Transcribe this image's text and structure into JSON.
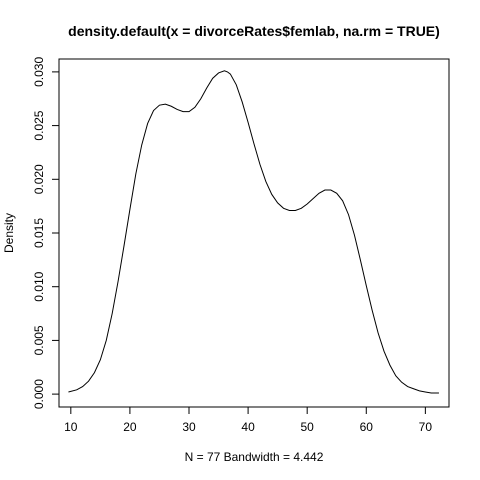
{
  "chart_data": {
    "type": "line",
    "title": "density.default(x = divorceRates$femlab, na.rm = TRUE)",
    "xlabel": "N = 77   Bandwidth = 4.442",
    "ylabel": "Density",
    "xlim": [
      8,
      74
    ],
    "ylim": [
      -0.0012,
      0.0312
    ],
    "x_ticks": [
      10,
      20,
      30,
      40,
      50,
      60,
      70
    ],
    "y_ticks": [
      0.0,
      0.005,
      0.01,
      0.015,
      0.02,
      0.025,
      0.03
    ],
    "y_tick_labels": [
      "0.000",
      "0.005",
      "0.010",
      "0.015",
      "0.020",
      "0.025",
      "0.030"
    ],
    "grid": false,
    "series": [
      {
        "x": [
          9.6,
          11,
          12,
          13,
          14,
          15,
          16,
          17,
          18,
          19,
          20,
          21,
          22,
          23,
          24,
          25,
          26,
          27,
          28,
          29,
          30,
          31,
          32,
          33,
          34,
          35,
          36,
          36.5,
          37,
          38,
          39,
          40,
          41,
          42,
          43,
          44,
          45,
          46,
          47,
          48,
          49,
          50,
          51,
          52,
          53,
          54,
          55,
          56,
          57,
          58,
          59,
          60,
          61,
          62,
          63,
          64,
          65,
          66,
          67,
          68,
          69,
          70,
          71,
          72.3
        ],
        "y": [
          0.0002,
          0.0004,
          0.0007,
          0.0012,
          0.002,
          0.0032,
          0.005,
          0.0075,
          0.0105,
          0.0138,
          0.0172,
          0.0205,
          0.0232,
          0.0252,
          0.0264,
          0.0269,
          0.027,
          0.0268,
          0.0265,
          0.0263,
          0.0263,
          0.0267,
          0.0275,
          0.0285,
          0.0294,
          0.0299,
          0.0301,
          0.03,
          0.0298,
          0.0288,
          0.0272,
          0.0253,
          0.0233,
          0.0214,
          0.0198,
          0.0186,
          0.0178,
          0.0173,
          0.0171,
          0.0171,
          0.0173,
          0.0177,
          0.0182,
          0.0187,
          0.019,
          0.019,
          0.0187,
          0.018,
          0.0167,
          0.0148,
          0.0125,
          0.0101,
          0.0078,
          0.0057,
          0.004,
          0.0027,
          0.0017,
          0.0011,
          0.0007,
          0.0005,
          0.0003,
          0.0002,
          0.0001,
          0.0001
        ]
      }
    ]
  }
}
